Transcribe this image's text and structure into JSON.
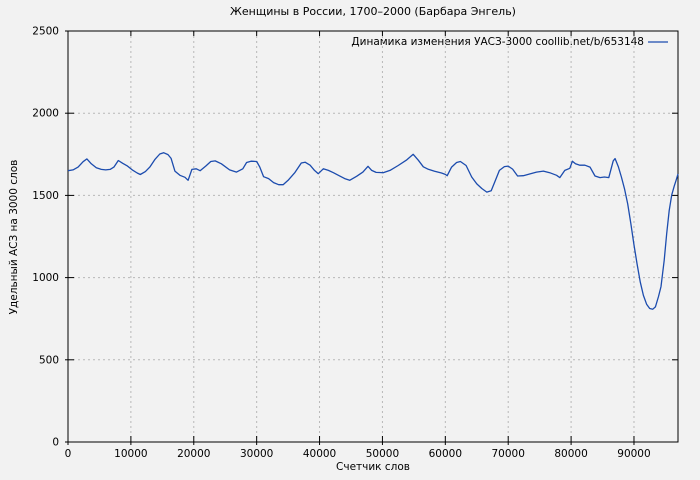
{
  "figure": {
    "background": "#f2f2f2",
    "border_color": "#000000",
    "grid_color": "#b8b8b8"
  },
  "chart_data": {
    "type": "line",
    "title": "Женщины в России, 1700–2000 (Барбара Энгель)",
    "xlabel": "Счетчик слов",
    "ylabel": "Удельный АСЗ на 3000 слов",
    "legend_position": "top-right-inside",
    "grid": true,
    "xlim": [
      0,
      97000
    ],
    "ylim": [
      0,
      2500
    ],
    "xticks": [
      0,
      10000,
      20000,
      30000,
      40000,
      50000,
      60000,
      70000,
      80000,
      90000
    ],
    "xtick_labels": [
      "0",
      "10000",
      "20000",
      "30000",
      "40000",
      "50000",
      "60000",
      "70000",
      "80000",
      "90000"
    ],
    "yticks": [
      0,
      500,
      1000,
      1500,
      2000,
      2500
    ],
    "ytick_labels": [
      "0",
      "500",
      "1000",
      "1500",
      "2000",
      "2500"
    ],
    "series": [
      {
        "name": "Динамика изменения УАСЗ-3000 coollib.net/b/653148",
        "color": "#1c4cae",
        "points": [
          [
            0,
            1650
          ],
          [
            800,
            1655
          ],
          [
            1600,
            1672
          ],
          [
            2400,
            1705
          ],
          [
            3000,
            1722
          ],
          [
            3700,
            1692
          ],
          [
            4500,
            1668
          ],
          [
            5300,
            1658
          ],
          [
            6000,
            1655
          ],
          [
            6700,
            1658
          ],
          [
            7300,
            1672
          ],
          [
            8000,
            1712
          ],
          [
            8700,
            1695
          ],
          [
            9400,
            1680
          ],
          [
            10200,
            1656
          ],
          [
            11000,
            1636
          ],
          [
            11500,
            1627
          ],
          [
            12300,
            1645
          ],
          [
            13000,
            1672
          ],
          [
            13800,
            1718
          ],
          [
            14600,
            1752
          ],
          [
            15200,
            1760
          ],
          [
            15900,
            1748
          ],
          [
            16400,
            1725
          ],
          [
            17000,
            1648
          ],
          [
            17800,
            1622
          ],
          [
            18600,
            1610
          ],
          [
            19100,
            1592
          ],
          [
            19700,
            1658
          ],
          [
            20400,
            1662
          ],
          [
            21000,
            1650
          ],
          [
            21900,
            1678
          ],
          [
            22700,
            1706
          ],
          [
            23400,
            1710
          ],
          [
            24400,
            1692
          ],
          [
            25700,
            1655
          ],
          [
            26800,
            1642
          ],
          [
            27800,
            1662
          ],
          [
            28400,
            1700
          ],
          [
            29100,
            1708
          ],
          [
            30000,
            1706
          ],
          [
            30500,
            1672
          ],
          [
            31100,
            1614
          ],
          [
            31900,
            1602
          ],
          [
            32700,
            1578
          ],
          [
            33500,
            1565
          ],
          [
            34200,
            1565
          ],
          [
            35000,
            1592
          ],
          [
            36100,
            1640
          ],
          [
            37100,
            1697
          ],
          [
            37700,
            1702
          ],
          [
            38500,
            1684
          ],
          [
            39200,
            1652
          ],
          [
            39800,
            1632
          ],
          [
            40600,
            1662
          ],
          [
            41400,
            1652
          ],
          [
            42200,
            1638
          ],
          [
            43000,
            1622
          ],
          [
            44000,
            1602
          ],
          [
            44800,
            1592
          ],
          [
            45900,
            1616
          ],
          [
            46900,
            1642
          ],
          [
            47700,
            1677
          ],
          [
            48300,
            1652
          ],
          [
            49000,
            1640
          ],
          [
            50100,
            1638
          ],
          [
            51200,
            1652
          ],
          [
            52500,
            1682
          ],
          [
            53800,
            1714
          ],
          [
            54900,
            1750
          ],
          [
            55700,
            1714
          ],
          [
            56500,
            1674
          ],
          [
            57300,
            1659
          ],
          [
            58300,
            1647
          ],
          [
            59400,
            1636
          ],
          [
            60000,
            1628
          ],
          [
            60300,
            1620
          ],
          [
            61000,
            1672
          ],
          [
            61800,
            1700
          ],
          [
            62400,
            1706
          ],
          [
            63300,
            1682
          ],
          [
            64200,
            1612
          ],
          [
            65000,
            1570
          ],
          [
            65800,
            1542
          ],
          [
            66600,
            1520
          ],
          [
            67300,
            1528
          ],
          [
            67900,
            1585
          ],
          [
            68600,
            1652
          ],
          [
            69400,
            1675
          ],
          [
            70000,
            1678
          ],
          [
            70700,
            1660
          ],
          [
            71500,
            1618
          ],
          [
            72400,
            1620
          ],
          [
            73400,
            1630
          ],
          [
            74500,
            1642
          ],
          [
            75600,
            1648
          ],
          [
            76600,
            1638
          ],
          [
            77700,
            1622
          ],
          [
            78200,
            1608
          ],
          [
            79000,
            1652
          ],
          [
            79800,
            1665
          ],
          [
            80200,
            1708
          ],
          [
            80700,
            1692
          ],
          [
            81400,
            1684
          ],
          [
            82200,
            1684
          ],
          [
            83000,
            1672
          ],
          [
            83800,
            1618
          ],
          [
            84600,
            1608
          ],
          [
            85300,
            1612
          ],
          [
            86000,
            1608
          ],
          [
            86700,
            1710
          ],
          [
            87000,
            1724
          ],
          [
            87500,
            1675
          ],
          [
            88000,
            1612
          ],
          [
            88500,
            1540
          ],
          [
            89000,
            1448
          ],
          [
            89500,
            1330
          ],
          [
            90000,
            1198
          ],
          [
            90500,
            1082
          ],
          [
            91000,
            972
          ],
          [
            91500,
            892
          ],
          [
            92000,
            838
          ],
          [
            92500,
            812
          ],
          [
            93000,
            808
          ],
          [
            93400,
            822
          ],
          [
            93900,
            885
          ],
          [
            94300,
            945
          ],
          [
            94800,
            1105
          ],
          [
            95200,
            1268
          ],
          [
            95600,
            1408
          ],
          [
            96000,
            1502
          ],
          [
            96400,
            1556
          ],
          [
            96700,
            1592
          ],
          [
            97000,
            1630
          ]
        ]
      }
    ]
  }
}
